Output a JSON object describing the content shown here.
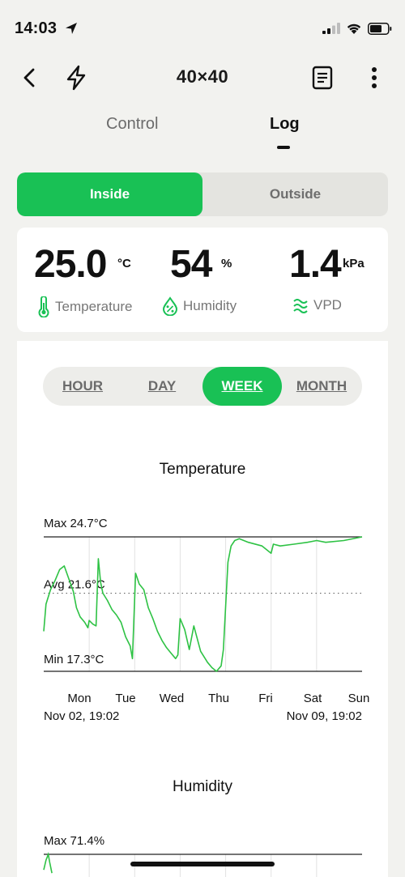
{
  "status": {
    "time": "14:03"
  },
  "nav": {
    "title": "40×40"
  },
  "tabs": [
    {
      "label": "Control"
    },
    {
      "label": "Log"
    }
  ],
  "location": {
    "options": [
      {
        "label": "Inside"
      },
      {
        "label": "Outside"
      }
    ],
    "selected": "Inside"
  },
  "stats": {
    "temperature": {
      "value": "25.0",
      "unit": "°C",
      "label": "Temperature"
    },
    "humidity": {
      "value": "54",
      "unit": "%",
      "label": "Humidity"
    },
    "vpd": {
      "value": "1.4",
      "unit": "kPa",
      "label": "VPD"
    }
  },
  "range": {
    "options": [
      {
        "label": "HOUR"
      },
      {
        "label": "DAY"
      },
      {
        "label": "WEEK"
      },
      {
        "label": "MONTH"
      }
    ],
    "selected": "WEEK"
  },
  "colors": {
    "accent": "#19c155",
    "line": "#2ec244"
  },
  "chart_data": [
    {
      "type": "line",
      "title": "Temperature",
      "max_label": "Max 24.7°C",
      "avg_label": "Avg 21.6°C",
      "min_label": "Min 17.3°C",
      "ylim": [
        17.3,
        24.7
      ],
      "avg": 21.6,
      "x_ticks": [
        "Mon",
        "Tue",
        "Wed",
        "Thu",
        "Fri",
        "Sat",
        "Sun"
      ],
      "start_label": "Nov 02, 19:02",
      "end_label": "Nov 09, 19:02",
      "x": [
        0,
        0.05,
        0.15,
        0.25,
        0.35,
        0.45,
        0.55,
        0.65,
        0.72,
        0.8,
        0.9,
        0.97,
        1.0,
        1.08,
        1.15,
        1.2,
        1.25,
        1.3,
        1.4,
        1.5,
        1.6,
        1.7,
        1.8,
        1.9,
        1.95,
        2.02,
        2.1,
        2.2,
        2.3,
        2.4,
        2.5,
        2.6,
        2.7,
        2.8,
        2.9,
        2.95,
        3.0,
        3.1,
        3.2,
        3.3,
        3.45,
        3.6,
        3.7,
        3.8,
        3.9,
        3.95,
        4.05,
        4.12,
        4.2,
        4.3,
        4.5,
        4.8,
        5.0,
        5.05,
        5.2,
        5.5,
        5.8,
        6.0,
        6.2,
        6.6,
        7.0
      ],
      "y": [
        19.5,
        21.0,
        21.8,
        22.3,
        22.9,
        23.1,
        22.4,
        21.7,
        20.8,
        20.3,
        20.0,
        19.7,
        20.1,
        19.9,
        19.8,
        23.5,
        22.2,
        21.6,
        21.2,
        20.7,
        20.4,
        20.0,
        19.2,
        18.7,
        18.0,
        22.7,
        22.1,
        21.8,
        20.8,
        20.2,
        19.5,
        19.0,
        18.6,
        18.3,
        18.0,
        18.2,
        20.2,
        19.6,
        18.5,
        19.8,
        18.4,
        17.8,
        17.5,
        17.3,
        17.6,
        18.5,
        23.3,
        24.2,
        24.5,
        24.6,
        24.4,
        24.2,
        23.8,
        24.3,
        24.2,
        24.3,
        24.4,
        24.5,
        24.4,
        24.5,
        24.7
      ]
    },
    {
      "type": "line",
      "title": "Humidity",
      "max_label": "Max 71.4%",
      "x": [
        0.0,
        0.05,
        0.1,
        0.13,
        0.18
      ],
      "y": [
        69.0,
        70.5,
        71.4,
        70.2,
        68.5
      ],
      "ylim_top": 71.4
    }
  ]
}
